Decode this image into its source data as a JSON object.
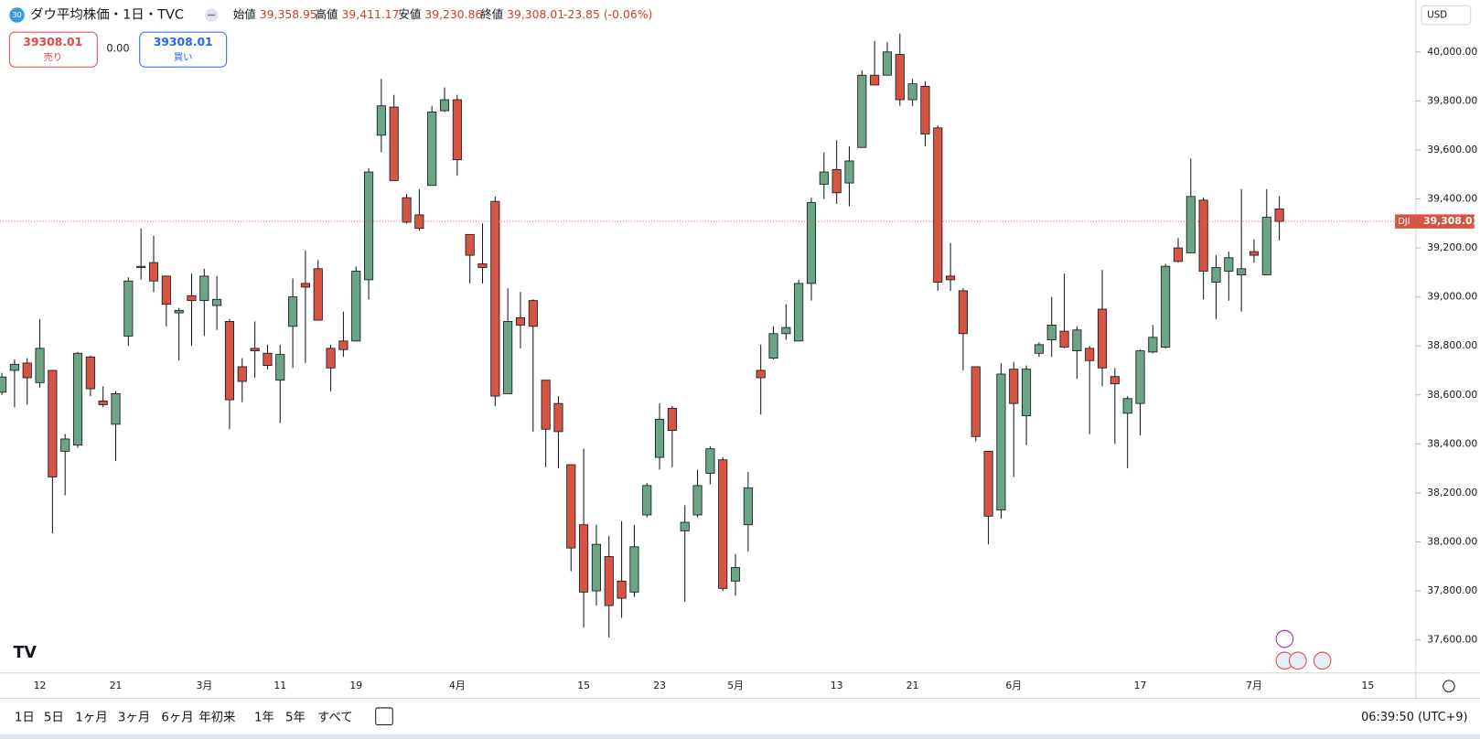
{
  "header": {
    "badge": "30",
    "symbol": "ダウ平均株価・1日・TVC",
    "ohlc": [
      {
        "label": "始値",
        "value": "39,358.95"
      },
      {
        "label": "高値",
        "value": "39,411.17"
      },
      {
        "label": "安値",
        "value": "39,230.86"
      },
      {
        "label": "終値",
        "value": "39,308.01"
      }
    ],
    "change": "-23.85 (-0.06%)"
  },
  "trade": {
    "sell_price": "39308.01",
    "sell_label": "売り",
    "spread": "0.00",
    "buy_price": "39308.01",
    "buy_label": "買い"
  },
  "currency": "USD",
  "chart_data": {
    "type": "candlestick",
    "open": [
      38611,
      38700,
      38730,
      38650,
      38700,
      38370,
      38395,
      38755,
      38575,
      38480,
      38840,
      39120,
      39140,
      39085,
      38935,
      39005,
      38985,
      38965,
      38900,
      38715,
      38790,
      38770,
      38660,
      38880,
      39055,
      39115,
      38790,
      38820,
      38820,
      39070,
      39660,
      39775,
      39405,
      39335,
      39455,
      39760,
      39805,
      39255,
      39135,
      39390,
      38605,
      38915,
      38985,
      38660,
      38565,
      38315,
      38070,
      37800,
      37940,
      37840,
      37795,
      38110,
      38345,
      38545,
      38045,
      38110,
      38280,
      38335,
      37840,
      38070,
      38700,
      38750,
      38850,
      38820,
      39055,
      39460,
      39520,
      39465,
      39610,
      39905,
      39905,
      39990,
      39805,
      39860,
      39690,
      39085,
      39025,
      38715,
      38370,
      38130,
      38705,
      38515,
      38770,
      38825,
      38860,
      38780,
      38790,
      38950,
      38675,
      38525,
      38565,
      38775,
      38795,
      39200,
      39180,
      39395,
      39060,
      39105,
      39090,
      39185,
      39090,
      39358.95
    ],
    "high": [
      38690,
      38745,
      38750,
      38910,
      38700,
      38440,
      38775,
      38760,
      38635,
      38615,
      39080,
      39280,
      39250,
      39085,
      38955,
      39095,
      39115,
      39085,
      38910,
      38750,
      38900,
      38805,
      38805,
      39075,
      39190,
      39150,
      38805,
      38940,
      39125,
      39525,
      39890,
      39825,
      39420,
      39440,
      39780,
      39855,
      39825,
      39255,
      39300,
      39410,
      39035,
      39020,
      38990,
      38660,
      38595,
      38315,
      38380,
      38070,
      38025,
      38085,
      38070,
      38240,
      38565,
      38555,
      38150,
      38295,
      38390,
      38345,
      37950,
      38285,
      38805,
      38880,
      38970,
      39070,
      39405,
      39590,
      39640,
      39615,
      39925,
      40045,
      40040,
      40075,
      39890,
      39880,
      39700,
      39220,
      39035,
      38715,
      38370,
      38730,
      38735,
      38720,
      38815,
      39000,
      39095,
      38880,
      38800,
      39110,
      38710,
      38595,
      38785,
      38885,
      39135,
      39240,
      39565,
      39405,
      39170,
      39185,
      39440,
      39235,
      39440,
      39411.17
    ],
    "low": [
      38600,
      38550,
      38560,
      38630,
      38035,
      38190,
      38385,
      38595,
      38550,
      38330,
      38800,
      39070,
      39020,
      38880,
      38740,
      38800,
      38840,
      38865,
      38460,
      38570,
      38670,
      38705,
      38485,
      38710,
      38730,
      38905,
      38615,
      38755,
      38820,
      38990,
      39590,
      39475,
      39300,
      39270,
      39455,
      39755,
      39495,
      39055,
      39055,
      38555,
      38605,
      38790,
      38450,
      38305,
      38300,
      37880,
      37650,
      37740,
      37610,
      37690,
      37775,
      38100,
      38295,
      38305,
      37755,
      38100,
      38235,
      37800,
      37780,
      37960,
      38520,
      38745,
      38825,
      38820,
      38985,
      39400,
      39380,
      39370,
      39610,
      39865,
      39905,
      39780,
      39780,
      39615,
      39025,
      39025,
      38700,
      38410,
      37990,
      38095,
      38265,
      38395,
      38755,
      38755,
      38790,
      38665,
      38440,
      38635,
      38400,
      38300,
      38435,
      38770,
      38790,
      39140,
      39180,
      38990,
      38910,
      38985,
      38940,
      39140,
      39090,
      39230.86
    ],
    "close": [
      38673,
      38725,
      38670,
      38790,
      38265,
      38420,
      38770,
      38625,
      38560,
      38605,
      39065,
      39125,
      39065,
      38970,
      38945,
      38985,
      39085,
      38990,
      38580,
      38655,
      38780,
      38720,
      38765,
      39000,
      39040,
      38905,
      38710,
      38785,
      39105,
      39510,
      39780,
      39475,
      39305,
      39280,
      39755,
      39805,
      39560,
      39170,
      39120,
      38595,
      38900,
      38885,
      38880,
      38460,
      38450,
      37975,
      37795,
      37990,
      37740,
      37770,
      37980,
      38230,
      38500,
      38455,
      38080,
      38230,
      38380,
      37810,
      37895,
      38220,
      38670,
      38850,
      38875,
      39055,
      39385,
      39510,
      39425,
      39555,
      39905,
      39865,
      40000,
      39805,
      39870,
      39665,
      39060,
      39070,
      38850,
      38430,
      38105,
      38685,
      38565,
      38705,
      38805,
      38885,
      38795,
      38865,
      38740,
      38710,
      38645,
      38585,
      38780,
      38835,
      39125,
      39145,
      39410,
      39105,
      39120,
      39160,
      39115,
      39170,
      39325,
      39308.01
    ],
    "colors": {
      "up": "#6ba583",
      "down": "#d75442"
    },
    "ylim": [
      37465,
      40212
    ],
    "yticks": [
      {
        "value": 37600,
        "label": "37,600.00"
      },
      {
        "value": 37800,
        "label": "37,800.00"
      },
      {
        "value": 38000,
        "label": "38,000.00"
      },
      {
        "value": 38200,
        "label": "38,200.00"
      },
      {
        "value": 38400,
        "label": "38,400.00"
      },
      {
        "value": 38600,
        "label": "38,600.00"
      },
      {
        "value": 38800,
        "label": "38,800.00"
      },
      {
        "value": 39000,
        "label": "39,000.00"
      },
      {
        "value": 39200,
        "label": "39,200.00"
      },
      {
        "value": 39400,
        "label": "39,400.00"
      },
      {
        "value": 39600,
        "label": "39,600.00"
      },
      {
        "value": 39800,
        "label": "39,800.00"
      },
      {
        "value": 40000,
        "label": "40,000.00"
      }
    ],
    "xticks": [
      {
        "value": 3,
        "label": "12"
      },
      {
        "value": 9,
        "label": "21"
      },
      {
        "value": 16,
        "label": "3月"
      },
      {
        "value": 22,
        "label": "11"
      },
      {
        "value": 28,
        "label": "19"
      },
      {
        "value": 36,
        "label": "4月"
      },
      {
        "value": 46,
        "label": "15"
      },
      {
        "value": 52,
        "label": "23"
      },
      {
        "value": 58,
        "label": "5月"
      },
      {
        "value": 66,
        "label": "13"
      },
      {
        "value": 72,
        "label": "21"
      },
      {
        "value": 80,
        "label": "6月"
      },
      {
        "value": 90,
        "label": "17"
      },
      {
        "value": 99,
        "label": "7月"
      },
      {
        "value": 108,
        "label": "15"
      }
    ],
    "last_price": {
      "symbol": "DJI",
      "label": "39,308.01"
    }
  },
  "toolbar": {
    "ranges": [
      "1日",
      "5日",
      "1ヶ月",
      "3ヶ月",
      "6ヶ月",
      "年初来",
      "1年",
      "5年",
      "すべて"
    ],
    "time": "06:39:50 (UTC+9)"
  }
}
